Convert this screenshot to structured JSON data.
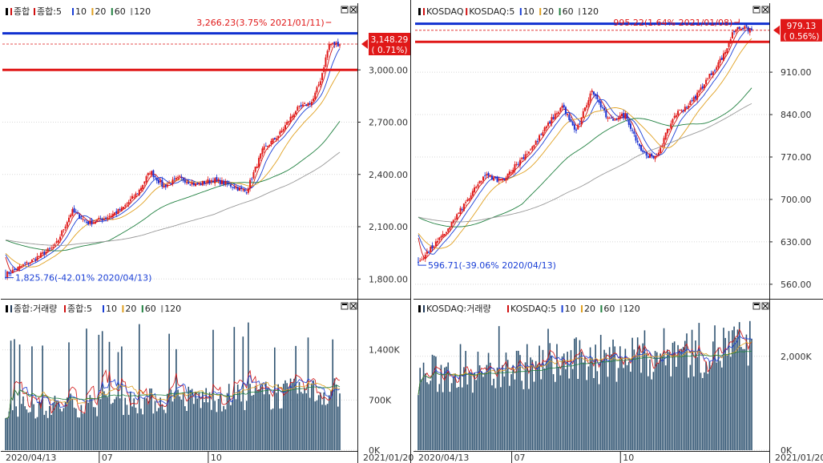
{
  "panels": [
    {
      "id": "kospi",
      "price_legend": [
        {
          "text": "종합",
          "color": "#d01010"
        },
        {
          "text": "종합:5",
          "color": "#d01010"
        },
        {
          "text": "10",
          "color": "#1a3fd6"
        },
        {
          "text": "20",
          "color": "#e0a020"
        },
        {
          "text": "60",
          "color": "#208040"
        },
        {
          "text": "120",
          "color": "#999999"
        }
      ],
      "volume_legend": [
        {
          "text": "종합:거래량",
          "color": "#1f3a5a"
        },
        {
          "text": "종합:5",
          "color": "#d01010"
        },
        {
          "text": "10",
          "color": "#1a3fd6"
        },
        {
          "text": "20",
          "color": "#e0a020"
        },
        {
          "text": "60",
          "color": "#208040"
        },
        {
          "text": "120",
          "color": "#999999"
        }
      ],
      "price_ticks": [
        "3,000.00",
        "2,700.00",
        "2,400.00",
        "2,100.00",
        "1,800.00"
      ],
      "volume_ticks": [
        "1,400K",
        "700K",
        "0K"
      ],
      "x_labels": [
        "2020/04/13",
        "07",
        "10",
        "2021/01/20"
      ],
      "high_annotation": "3,266.23(3.75% 2021/01/11)",
      "low_annotation": "1,825.76(-42.01% 2020/04/13)",
      "current_value": "3,148.29",
      "current_change": "( 0.71%)"
    },
    {
      "id": "kosdaq",
      "price_legend": [
        {
          "text": "KOSDAQ",
          "color": "#d01010"
        },
        {
          "text": "KOSDAQ:5",
          "color": "#d01010"
        },
        {
          "text": "10",
          "color": "#1a3fd6"
        },
        {
          "text": "20",
          "color": "#e0a020"
        },
        {
          "text": "60",
          "color": "#208040"
        },
        {
          "text": "120",
          "color": "#999999"
        }
      ],
      "volume_legend": [
        {
          "text": "KOSDAQ:거래량",
          "color": "#1f3a5a"
        },
        {
          "text": "KOSDAQ:5",
          "color": "#d01010"
        },
        {
          "text": "10",
          "color": "#1a3fd6"
        },
        {
          "text": "20",
          "color": "#e0a020"
        },
        {
          "text": "60",
          "color": "#208040"
        },
        {
          "text": "120",
          "color": "#999999"
        }
      ],
      "price_ticks": [
        "910.00",
        "840.00",
        "770.00",
        "700.00",
        "630.00",
        "560.00"
      ],
      "volume_ticks": [
        "2,000K",
        "0K"
      ],
      "x_labels": [
        "2020/04/13",
        "07",
        "10",
        "2021/01/20"
      ],
      "high_annotation": "995.22(1.64% 2021/01/08)",
      "low_annotation": "596.71(-39.06% 2020/04/13)",
      "current_value": "979.13",
      "current_change": "( 0.56%)"
    }
  ],
  "colors": {
    "up": "#e01818",
    "down": "#1a2fd0",
    "volume": "#2e5270",
    "grid": "#c8c8c8"
  },
  "chart_data": [
    {
      "type": "candlestick",
      "title": "종합",
      "x_range": [
        "2020/04/13",
        "2021/01/20"
      ],
      "ylim": [
        1700,
        3300
      ],
      "high": {
        "value": 3266.23,
        "change_pct": 3.75,
        "date": "2021/01/11"
      },
      "low": {
        "value": 1825.76,
        "change_pct": -42.01,
        "date": "2020/04/13"
      },
      "last": {
        "value": 3148.29,
        "change_pct": 0.71
      },
      "horizontal_lines": [
        3210,
        3148.29,
        3000
      ],
      "close_path": [
        [
          "2020/04/13",
          1825
        ],
        [
          "2020/05/04",
          1900
        ],
        [
          "2020/05/25",
          1990
        ],
        [
          "2020/06/08",
          2190
        ],
        [
          "2020/06/22",
          2120
        ],
        [
          "2020/07/06",
          2150
        ],
        [
          "2020/07/20",
          2200
        ],
        [
          "2020/08/03",
          2300
        ],
        [
          "2020/08/13",
          2420
        ],
        [
          "2020/08/24",
          2330
        ],
        [
          "2020/09/07",
          2380
        ],
        [
          "2020/09/21",
          2340
        ],
        [
          "2020/10/05",
          2370
        ],
        [
          "2020/10/19",
          2340
        ],
        [
          "2020/11/02",
          2300
        ],
        [
          "2020/11/16",
          2540
        ],
        [
          "2020/11/30",
          2630
        ],
        [
          "2020/12/14",
          2770
        ],
        [
          "2020/12/28",
          2820
        ],
        [
          "2021/01/04",
          2950
        ],
        [
          "2021/01/11",
          3148
        ],
        [
          "2021/01/20",
          3148
        ]
      ],
      "moving_averages": [
        "5",
        "10",
        "20",
        "60",
        "120"
      ],
      "volume": {
        "ylim": [
          0,
          1900000
        ],
        "typical": 700000,
        "max": 1800000
      }
    },
    {
      "type": "candlestick",
      "title": "KOSDAQ",
      "x_range": [
        "2020/04/13",
        "2021/01/20"
      ],
      "ylim": [
        540,
        1000
      ],
      "high": {
        "value": 995.22,
        "change_pct": 1.64,
        "date": "2021/01/08"
      },
      "low": {
        "value": 596.71,
        "change_pct": -39.06,
        "date": "2020/04/13"
      },
      "last": {
        "value": 979.13,
        "change_pct": 0.56
      },
      "horizontal_lines": [
        990,
        979.13,
        960
      ],
      "close_path": [
        [
          "2020/04/13",
          597
        ],
        [
          "2020/05/04",
          640
        ],
        [
          "2020/05/25",
          700
        ],
        [
          "2020/06/08",
          740
        ],
        [
          "2020/06/22",
          730
        ],
        [
          "2020/07/06",
          760
        ],
        [
          "2020/07/20",
          790
        ],
        [
          "2020/08/03",
          830
        ],
        [
          "2020/08/13",
          855
        ],
        [
          "2020/08/24",
          810
        ],
        [
          "2020/09/07",
          880
        ],
        [
          "2020/09/21",
          830
        ],
        [
          "2020/10/05",
          840
        ],
        [
          "2020/10/19",
          780
        ],
        [
          "2020/10/30",
          765
        ],
        [
          "2020/11/16",
          840
        ],
        [
          "2020/11/30",
          860
        ],
        [
          "2020/12/14",
          900
        ],
        [
          "2020/12/28",
          940
        ],
        [
          "2021/01/04",
          975
        ],
        [
          "2021/01/08",
          985
        ],
        [
          "2021/01/20",
          979
        ]
      ],
      "moving_averages": [
        "5",
        "10",
        "20",
        "60",
        "120"
      ],
      "volume": {
        "ylim": [
          0,
          2900000
        ],
        "typical": 1900000,
        "max": 2700000
      }
    }
  ]
}
